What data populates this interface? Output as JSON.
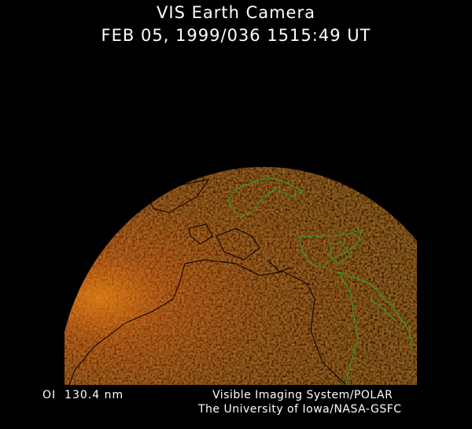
{
  "header": {
    "title": "VIS Earth Camera",
    "timestamp": "FEB 05, 1999/036 1515:49 UT"
  },
  "footer": {
    "wavelength": "OI  130.4 nm",
    "instrument": "Visible Imaging System/POLAR",
    "institution": "The University of Iowa/NASA-GSFC"
  },
  "colors": {
    "background": "#000000",
    "earth_dim": "#3a0800",
    "earth_bright": "#e07a10",
    "coastline_day": "#22aa22",
    "coastline_night": "#000000"
  }
}
